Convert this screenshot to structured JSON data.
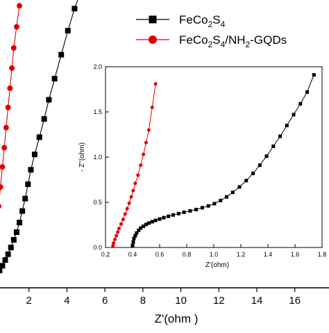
{
  "chart_data": [
    {
      "type": "scatter",
      "role": "main",
      "xlabel": "Z'(ohm )",
      "ylabel": "",
      "xlim": [
        0,
        17.8
      ],
      "ylim": [
        0,
        30
      ],
      "xticks": [
        2,
        4,
        6,
        8,
        10,
        12,
        14,
        16
      ],
      "tick_labels": [
        "2",
        "4",
        "6",
        "8",
        "10",
        "12",
        "14",
        "16"
      ],
      "legend": {
        "placement": "top-right"
      },
      "series": [
        {
          "label": "FeCo",
          "sub_a": "2",
          "mid_a": "S",
          "sub_b": "4",
          "color": "#000000",
          "marker": "square",
          "x": [
            0.0,
            0.15,
            0.3,
            0.45,
            0.6,
            0.75,
            0.9,
            1.05,
            1.2,
            1.35,
            1.5,
            1.65,
            1.8,
            1.95,
            2.1,
            2.3,
            2.55,
            2.8,
            3.05,
            3.35,
            3.7,
            4.05,
            4.4,
            4.8
          ],
          "y": [
            0.3,
            0.8,
            1.3,
            1.8,
            2.3,
            2.9,
            3.5,
            4.2,
            5.0,
            5.8,
            6.8,
            8.0,
            9.3,
            10.8,
            12.3,
            13.9,
            15.7,
            17.6,
            19.6,
            21.8,
            24.3,
            26.8,
            29.1,
            31.3
          ]
        },
        {
          "label": "FeCo",
          "sub_a": "2",
          "mid_a": "S",
          "sub_b": "4",
          "suffix_a": "/NH",
          "sub_c": "2",
          "suffix_b": "-GQDs",
          "color": "#e00000",
          "marker": "circle",
          "x": [
            0.0,
            0.1,
            0.2,
            0.3,
            0.4,
            0.5,
            0.6,
            0.7,
            0.8,
            0.9,
            1.0,
            1.1,
            1.2,
            1.35,
            1.5
          ],
          "y": [
            0.5,
            2.5,
            4.5,
            6.5,
            8.5,
            10.5,
            12.6,
            14.6,
            16.7,
            18.8,
            20.8,
            22.9,
            25.0,
            27.2,
            29.4
          ]
        }
      ]
    },
    {
      "type": "scatter",
      "role": "inset",
      "xlabel": "Z'(ohm)",
      "ylabel": "- Z''(ohm)",
      "xlim": [
        0.2,
        1.8
      ],
      "ylim": [
        0,
        2.0
      ],
      "xticks": [
        0.2,
        0.4,
        0.6,
        0.8,
        1.0,
        1.2,
        1.4,
        1.6,
        1.8
      ],
      "xtick_labels": [
        "0.2",
        "0.4",
        "0.6",
        "0.8",
        "1.0",
        "1.2",
        "1.4",
        "1.6",
        "1.8"
      ],
      "yticks": [
        0,
        0.5,
        1.0,
        1.5,
        2.0
      ],
      "ytick_labels": [
        "0.0",
        "0.5",
        "1.0",
        "1.5",
        "2.0"
      ],
      "series": [
        {
          "color": "#000000",
          "marker": "square",
          "x": [
            0.4,
            0.405,
            0.41,
            0.42,
            0.43,
            0.445,
            0.46,
            0.48,
            0.5,
            0.52,
            0.545,
            0.57,
            0.6,
            0.63,
            0.665,
            0.7,
            0.74,
            0.78,
            0.825,
            0.87,
            0.915,
            0.96,
            1.005,
            1.05,
            1.095,
            1.14,
            1.19,
            1.24,
            1.29,
            1.34,
            1.39,
            1.44,
            1.49,
            1.54,
            1.59,
            1.64,
            1.69,
            1.74
          ],
          "y": [
            0.02,
            0.06,
            0.1,
            0.13,
            0.16,
            0.19,
            0.215,
            0.235,
            0.255,
            0.27,
            0.285,
            0.3,
            0.315,
            0.33,
            0.345,
            0.36,
            0.375,
            0.39,
            0.405,
            0.42,
            0.44,
            0.46,
            0.485,
            0.52,
            0.56,
            0.61,
            0.67,
            0.74,
            0.82,
            0.91,
            1.01,
            1.12,
            1.23,
            1.35,
            1.47,
            1.59,
            1.72,
            1.91
          ]
        },
        {
          "color": "#e00000",
          "marker": "circle",
          "x": [
            0.255,
            0.26,
            0.27,
            0.28,
            0.29,
            0.3,
            0.315,
            0.33,
            0.345,
            0.36,
            0.375,
            0.39,
            0.405,
            0.42,
            0.44,
            0.46,
            0.48,
            0.5,
            0.52,
            0.545,
            0.57
          ],
          "y": [
            0.02,
            0.05,
            0.09,
            0.13,
            0.17,
            0.21,
            0.26,
            0.31,
            0.37,
            0.43,
            0.49,
            0.56,
            0.63,
            0.71,
            0.8,
            0.91,
            1.03,
            1.16,
            1.3,
            1.55,
            1.81
          ]
        }
      ]
    }
  ]
}
